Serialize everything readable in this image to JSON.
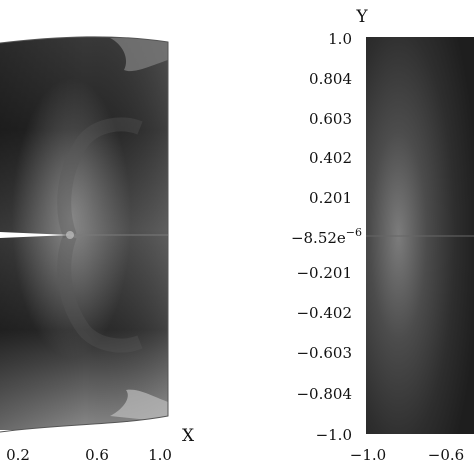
{
  "figure": {
    "left_panel": {
      "x_axis_title": "X",
      "x_ticks": [
        "0.2",
        "0.6",
        "1.0"
      ],
      "colormap": "grayscale",
      "features": [
        "crack-line",
        "stress-concentration"
      ]
    },
    "right_panel": {
      "y_axis_title": "Y",
      "y_ticks": [
        "1.0",
        "0.804",
        "0.603",
        "0.402",
        "0.201",
        "-8.52e-6",
        "−0.201",
        "−0.402",
        "−0.603",
        "−0.804",
        "−1.0"
      ],
      "y_tick_mid_base": "−8.52e",
      "y_tick_mid_exp": "−6",
      "x_ticks": [
        "−1.0",
        "−0.6"
      ],
      "colormap": "grayscale"
    }
  }
}
